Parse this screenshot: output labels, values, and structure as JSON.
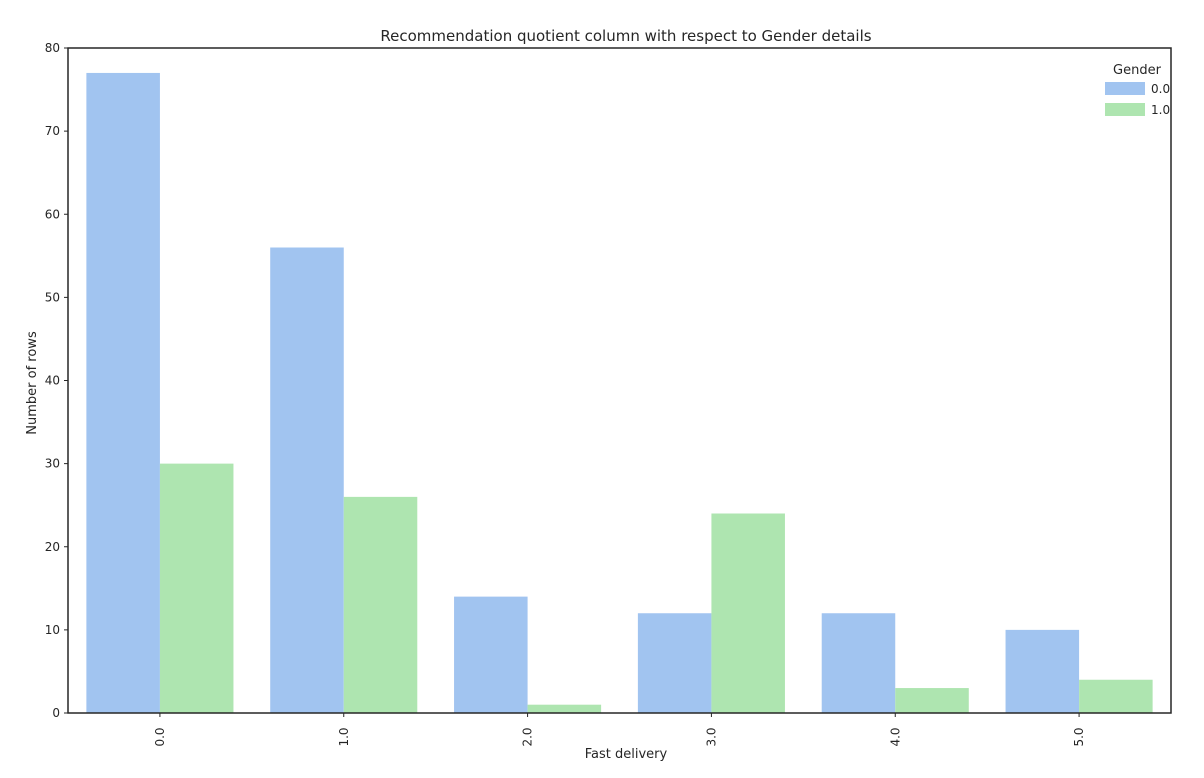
{
  "chart_data": {
    "type": "bar",
    "title": "Recommendation quotient column with respect to Gender details",
    "xlabel": "Fast delivery",
    "ylabel": "Number of rows",
    "categories": [
      "0.0",
      "1.0",
      "2.0",
      "3.0",
      "4.0",
      "5.0"
    ],
    "series": [
      {
        "name": "0.0",
        "color": "#a1c4f0",
        "values": [
          77,
          56,
          14,
          12,
          12,
          10
        ]
      },
      {
        "name": "1.0",
        "color": "#aee5b0",
        "values": [
          30,
          26,
          1,
          24,
          3,
          4
        ]
      }
    ],
    "ylim": [
      0,
      80
    ],
    "yticks": [
      "0",
      "10",
      "20",
      "30",
      "40",
      "50",
      "60",
      "70",
      "80"
    ],
    "legend": {
      "title": "Gender",
      "placement": "top-right"
    },
    "grid": false
  }
}
